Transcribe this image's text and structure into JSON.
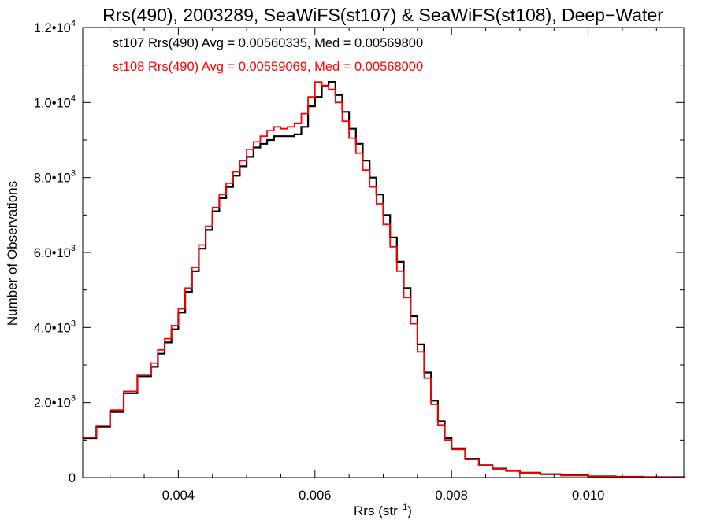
{
  "chart_data": {
    "type": "line",
    "step": true,
    "title": "Rrs(490), 2003289, SeaWiFS(st107) & SeaWiFS(st108), Deep−Water",
    "xlabel": "Rrs (str",
    "xlabel_exp": "−1",
    "xlabel_close": ")",
    "ylabel": "Number of Observations",
    "xlim": [
      0.0026,
      0.0114
    ],
    "ylim": [
      0,
      12000
    ],
    "grid": false,
    "x_ticks": [
      {
        "value": 0.004,
        "label": "0.004"
      },
      {
        "value": 0.006,
        "label": "0.006"
      },
      {
        "value": 0.008,
        "label": "0.008"
      },
      {
        "value": 0.01,
        "label": "0.010"
      }
    ],
    "y_ticks": [
      {
        "value": 0,
        "mantissa": "0",
        "exp": ""
      },
      {
        "value": 2000,
        "mantissa": "2.0•10",
        "exp": "3"
      },
      {
        "value": 4000,
        "mantissa": "4.0•10",
        "exp": "3"
      },
      {
        "value": 6000,
        "mantissa": "6.0•10",
        "exp": "3"
      },
      {
        "value": 8000,
        "mantissa": "8.0•10",
        "exp": "3"
      },
      {
        "value": 10000,
        "mantissa": "1.0•10",
        "exp": "4"
      },
      {
        "value": 12000,
        "mantissa": "1.2•10",
        "exp": "4"
      }
    ],
    "annotations": [
      {
        "text": "st107 Rrs(490) Avg = 0.00560335, Med = 0.00569800",
        "color": "#000000"
      },
      {
        "text": "st108 Rrs(490) Avg = 0.00559069, Med = 0.00568000",
        "color": "#ff0000"
      }
    ],
    "series": [
      {
        "color": "#000000",
        "x": [
          0.0026,
          0.0028,
          0.003,
          0.0032,
          0.0034,
          0.0036,
          0.0037,
          0.0038,
          0.0039,
          0.004,
          0.0041,
          0.0042,
          0.0043,
          0.0044,
          0.0045,
          0.0046,
          0.0047,
          0.0048,
          0.0049,
          0.005,
          0.0051,
          0.0052,
          0.0053,
          0.0054,
          0.0055,
          0.0056,
          0.0057,
          0.0058,
          0.0059,
          0.006,
          0.0061,
          0.0062,
          0.0063,
          0.0064,
          0.0065,
          0.0066,
          0.0067,
          0.0068,
          0.0069,
          0.007,
          0.0071,
          0.0072,
          0.0073,
          0.0074,
          0.0075,
          0.0076,
          0.0077,
          0.0078,
          0.0079,
          0.008,
          0.0082,
          0.0084,
          0.0086,
          0.0088,
          0.009,
          0.0093,
          0.0096,
          0.01,
          0.0104,
          0.0108,
          0.0114
        ],
        "y": [
          1050,
          1350,
          1750,
          2250,
          2700,
          2950,
          3300,
          3600,
          3950,
          4400,
          4950,
          5500,
          6100,
          6600,
          7100,
          7450,
          7750,
          8050,
          8300,
          8550,
          8800,
          8900,
          9000,
          9100,
          9100,
          9100,
          9150,
          9350,
          9900,
          10150,
          10450,
          10550,
          10200,
          9750,
          9300,
          8900,
          8450,
          8000,
          7550,
          7000,
          6400,
          5750,
          5050,
          4300,
          3550,
          2800,
          2050,
          1500,
          1050,
          780,
          500,
          330,
          240,
          180,
          130,
          90,
          60,
          35,
          20,
          10,
          5
        ]
      },
      {
        "color": "#ff0000",
        "x": [
          0.0026,
          0.0028,
          0.003,
          0.0032,
          0.0034,
          0.0036,
          0.0037,
          0.0038,
          0.0039,
          0.004,
          0.0041,
          0.0042,
          0.0043,
          0.0044,
          0.0045,
          0.0046,
          0.0047,
          0.0048,
          0.0049,
          0.005,
          0.0051,
          0.0052,
          0.0053,
          0.0054,
          0.0055,
          0.0056,
          0.0057,
          0.0058,
          0.0059,
          0.006,
          0.0061,
          0.0062,
          0.0063,
          0.0064,
          0.0065,
          0.0066,
          0.0067,
          0.0068,
          0.0069,
          0.007,
          0.0071,
          0.0072,
          0.0073,
          0.0074,
          0.0075,
          0.0076,
          0.0077,
          0.0078,
          0.0079,
          0.008,
          0.0082,
          0.0084,
          0.0086,
          0.0088,
          0.009,
          0.0093,
          0.0096,
          0.01,
          0.0104,
          0.0108,
          0.0114
        ],
        "y": [
          1070,
          1380,
          1800,
          2300,
          2750,
          3050,
          3400,
          3700,
          4050,
          4500,
          5050,
          5600,
          6200,
          6700,
          7200,
          7550,
          7850,
          8150,
          8450,
          8750,
          8950,
          9100,
          9250,
          9350,
          9300,
          9350,
          9450,
          9700,
          10150,
          10550,
          10450,
          10350,
          10000,
          9500,
          9050,
          8650,
          8200,
          7750,
          7300,
          6750,
          6150,
          5500,
          4800,
          4100,
          3350,
          2650,
          1950,
          1400,
          1000,
          750,
          480,
          320,
          230,
          170,
          125,
          85,
          55,
          33,
          18,
          9,
          4
        ]
      }
    ]
  }
}
